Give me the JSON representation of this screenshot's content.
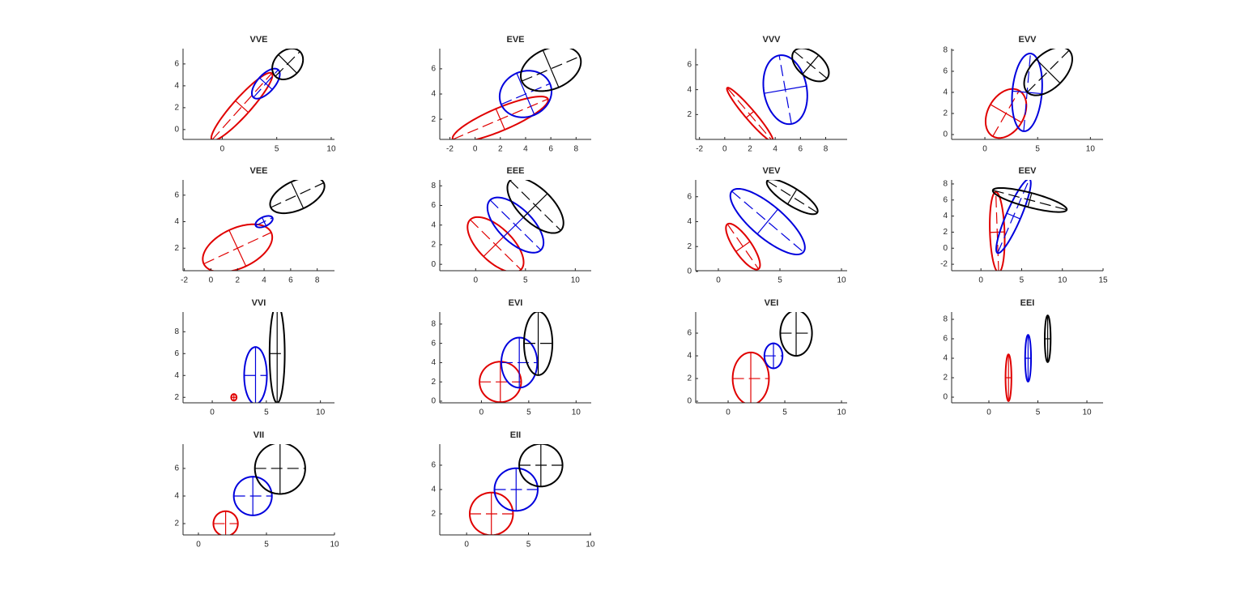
{
  "chart_data": [
    {
      "type": "ellipse",
      "title": "VVE",
      "xlim": [
        -3.6,
        10.3
      ],
      "ylim": [
        -0.9,
        7.4
      ],
      "xticks": [
        0,
        5,
        10
      ],
      "yticks": [
        0,
        2,
        4,
        6
      ],
      "series": [
        {
          "color": "#e00000",
          "center": [
            1.8,
            2.1
          ],
          "axes": [
            4.1,
            0.8
          ],
          "angle": 48
        },
        {
          "color": "#0000dd",
          "center": [
            4,
            4.2
          ],
          "axes": [
            1.7,
            0.8
          ],
          "angle": 48
        },
        {
          "color": "#000000",
          "center": [
            6,
            6
          ],
          "axes": [
            1.6,
            1.2
          ],
          "angle": 45
        }
      ]
    },
    {
      "type": "ellipse",
      "title": "EVE",
      "xlim": [
        -2.8,
        9.2
      ],
      "ylim": [
        0.4,
        7.6
      ],
      "xticks": [
        -2,
        0,
        2,
        4,
        6,
        8
      ],
      "yticks": [
        2,
        4,
        6
      ],
      "series": [
        {
          "color": "#e00000",
          "center": [
            2,
            2
          ],
          "axes": [
            4.1,
            0.9
          ],
          "angle": 23
        },
        {
          "color": "#0000dd",
          "center": [
            4,
            4
          ],
          "axes": [
            2.1,
            1.8
          ],
          "angle": 23
        },
        {
          "color": "#000000",
          "center": [
            6,
            6
          ],
          "axes": [
            2.5,
            1.6
          ],
          "angle": 23
        }
      ]
    },
    {
      "type": "ellipse",
      "title": "VVV",
      "xlim": [
        -2.3,
        9.7
      ],
      "ylim": [
        0,
        7.3
      ],
      "xticks": [
        -2,
        0,
        2,
        4,
        6,
        8
      ],
      "yticks": [
        2,
        4,
        6
      ],
      "series": [
        {
          "color": "#e00000",
          "center": [
            2,
            2
          ],
          "axes": [
            2.8,
            0.4
          ],
          "angle": -50
        },
        {
          "color": "#0000dd",
          "center": [
            4.8,
            4
          ],
          "axes": [
            2.8,
            1.7
          ],
          "angle": 100
        },
        {
          "color": "#000000",
          "center": [
            6.8,
            6
          ],
          "axes": [
            1.7,
            1
          ],
          "angle": -40
        }
      ]
    },
    {
      "type": "ellipse",
      "title": "EVV",
      "xlim": [
        -3.15,
        11.2
      ],
      "ylim": [
        -0.46,
        8.15
      ],
      "xticks": [
        0,
        5,
        10
      ],
      "yticks": [
        0,
        2,
        4,
        6,
        8
      ],
      "series": [
        {
          "color": "#e00000",
          "center": [
            2,
            2
          ],
          "axes": [
            2.5,
            1.7
          ],
          "angle": 60
        },
        {
          "color": "#0000dd",
          "center": [
            4,
            4
          ],
          "axes": [
            3.7,
            1.4
          ],
          "angle": 85
        },
        {
          "color": "#000000",
          "center": [
            6,
            6
          ],
          "axes": [
            2.8,
            1.6
          ],
          "angle": 45
        }
      ]
    },
    {
      "type": "ellipse",
      "title": "VEE",
      "xlim": [
        -2.1,
        9.3
      ],
      "ylim": [
        0.3,
        7.15
      ],
      "xticks": [
        -2,
        0,
        2,
        4,
        6,
        8
      ],
      "yticks": [
        2,
        4,
        6
      ],
      "series": [
        {
          "color": "#e00000",
          "center": [
            2,
            2
          ],
          "axes": [
            2.8,
            1.5
          ],
          "angle": 25
        },
        {
          "color": "#0000dd",
          "center": [
            4,
            4
          ],
          "axes": [
            0.7,
            0.35
          ],
          "angle": 25
        },
        {
          "color": "#000000",
          "center": [
            6.5,
            6
          ],
          "axes": [
            2.2,
            1.1
          ],
          "angle": 25
        }
      ]
    },
    {
      "type": "ellipse",
      "title": "EEE",
      "xlim": [
        -3.6,
        11.6
      ],
      "ylim": [
        -0.65,
        8.6
      ],
      "xticks": [
        0,
        5,
        10
      ],
      "yticks": [
        0,
        2,
        4,
        6,
        8
      ],
      "series": [
        {
          "color": "#e00000",
          "center": [
            2,
            2
          ],
          "axes": [
            3.6,
            1.7
          ],
          "angle": -45
        },
        {
          "color": "#0000dd",
          "center": [
            4,
            4
          ],
          "axes": [
            3.6,
            1.7
          ],
          "angle": -45
        },
        {
          "color": "#000000",
          "center": [
            6,
            6
          ],
          "axes": [
            3.6,
            1.7
          ],
          "angle": -45
        }
      ]
    },
    {
      "type": "ellipse",
      "title": "VEV",
      "xlim": [
        -1.84,
        10.46
      ],
      "ylim": [
        0.06,
        7.35
      ],
      "xticks": [
        0,
        5,
        10
      ],
      "yticks": [
        0,
        2,
        4,
        6
      ],
      "series": [
        {
          "color": "#e00000",
          "center": [
            2,
            2
          ],
          "axes": [
            2.2,
            0.7
          ],
          "angle": -55
        },
        {
          "color": "#0000dd",
          "center": [
            4,
            4
          ],
          "axes": [
            3.8,
            1.3
          ],
          "angle": -40
        },
        {
          "color": "#000000",
          "center": [
            6,
            6
          ],
          "axes": [
            2.4,
            0.7
          ],
          "angle": -32
        }
      ]
    },
    {
      "type": "ellipse",
      "title": "EEV",
      "xlim": [
        -3.6,
        15
      ],
      "ylim": [
        -2.8,
        8.5
      ],
      "xticks": [
        0,
        5,
        10,
        15
      ],
      "yticks": [
        -2,
        0,
        2,
        4,
        6,
        8
      ],
      "series": [
        {
          "color": "#e00000",
          "center": [
            2,
            2
          ],
          "axes": [
            5,
            0.9
          ],
          "angle": 92
        },
        {
          "color": "#0000dd",
          "center": [
            4,
            4
          ],
          "axes": [
            5,
            0.9
          ],
          "angle": 67
        },
        {
          "color": "#000000",
          "center": [
            6,
            6
          ],
          "axes": [
            4.7,
            0.9
          ],
          "angle": -15
        }
      ]
    },
    {
      "type": "ellipse",
      "title": "VVI",
      "xlim": [
        -2.7,
        11.3
      ],
      "ylim": [
        1.5,
        9.8
      ],
      "xticks": [
        0,
        5,
        10
      ],
      "yticks": [
        2,
        4,
        6,
        8
      ],
      "series": [
        {
          "color": "#e00000",
          "center": [
            2,
            2
          ],
          "axes": [
            0.25,
            0.3
          ],
          "angle": 0
        },
        {
          "color": "#0000dd",
          "center": [
            4,
            4
          ],
          "axes": [
            1.05,
            2.6
          ],
          "angle": 0
        },
        {
          "color": "#000000",
          "center": [
            6,
            6
          ],
          "axes": [
            0.7,
            4.5
          ],
          "angle": 0
        }
      ]
    },
    {
      "type": "ellipse",
      "title": "EVI",
      "xlim": [
        -4.4,
        11.6
      ],
      "ylim": [
        -0.17,
        9.25
      ],
      "xticks": [
        0,
        5,
        10
      ],
      "yticks": [
        0,
        2,
        4,
        6,
        8
      ],
      "series": [
        {
          "color": "#e00000",
          "center": [
            2,
            2
          ],
          "axes": [
            2.2,
            2.1
          ],
          "angle": 0
        },
        {
          "color": "#0000dd",
          "center": [
            4,
            4
          ],
          "axes": [
            1.9,
            2.6
          ],
          "angle": 0
        },
        {
          "color": "#000000",
          "center": [
            6,
            6
          ],
          "axes": [
            1.5,
            3.3
          ],
          "angle": 0
        }
      ]
    },
    {
      "type": "ellipse",
      "title": "VEI",
      "xlim": [
        -2.86,
        10.5
      ],
      "ylim": [
        -0.14,
        7.86
      ],
      "xticks": [
        0,
        5,
        10
      ],
      "yticks": [
        0,
        2,
        4,
        6
      ],
      "series": [
        {
          "color": "#e00000",
          "center": [
            2,
            2
          ],
          "axes": [
            1.6,
            2.3
          ],
          "angle": 0
        },
        {
          "color": "#0000dd",
          "center": [
            4,
            4
          ],
          "axes": [
            0.8,
            1.1
          ],
          "angle": 0
        },
        {
          "color": "#000000",
          "center": [
            6,
            6
          ],
          "axes": [
            1.4,
            2
          ],
          "angle": 0
        }
      ]
    },
    {
      "type": "ellipse",
      "title": "EEI",
      "xlim": [
        -3.8,
        11.65
      ],
      "ylim": [
        -0.58,
        8.75
      ],
      "xticks": [
        0,
        5,
        10
      ],
      "yticks": [
        0,
        2,
        4,
        6,
        8
      ],
      "series": [
        {
          "color": "#e00000",
          "center": [
            2,
            2
          ],
          "axes": [
            0.3,
            2.4
          ],
          "angle": 0
        },
        {
          "color": "#0000dd",
          "center": [
            4,
            4
          ],
          "axes": [
            0.3,
            2.4
          ],
          "angle": 0
        },
        {
          "color": "#000000",
          "center": [
            6,
            6
          ],
          "axes": [
            0.3,
            2.4
          ],
          "angle": 0
        }
      ]
    },
    {
      "type": "ellipse",
      "title": "VII",
      "xlim": [
        -1.13,
        10
      ],
      "ylim": [
        1.18,
        7.76
      ],
      "xticks": [
        0,
        5,
        10
      ],
      "yticks": [
        2,
        4,
        6
      ],
      "series": [
        {
          "color": "#e00000",
          "center": [
            2,
            2
          ],
          "axes": [
            0.9,
            0.9
          ],
          "angle": 0
        },
        {
          "color": "#0000dd",
          "center": [
            4,
            4
          ],
          "axes": [
            1.4,
            1.4
          ],
          "angle": 0
        },
        {
          "color": "#000000",
          "center": [
            6,
            6
          ],
          "axes": [
            1.85,
            1.85
          ],
          "angle": 0
        }
      ]
    },
    {
      "type": "ellipse",
      "title": "EII",
      "xlim": [
        -2.17,
        10.07
      ],
      "ylim": [
        0.27,
        7.73
      ],
      "xticks": [
        0,
        5,
        10
      ],
      "yticks": [
        2,
        4,
        6
      ],
      "series": [
        {
          "color": "#e00000",
          "center": [
            2,
            2
          ],
          "axes": [
            1.75,
            1.75
          ],
          "angle": 0
        },
        {
          "color": "#0000dd",
          "center": [
            4,
            4
          ],
          "axes": [
            1.75,
            1.75
          ],
          "angle": 0
        },
        {
          "color": "#000000",
          "center": [
            6,
            6
          ],
          "axes": [
            1.75,
            1.75
          ],
          "angle": 0
        }
      ]
    }
  ]
}
